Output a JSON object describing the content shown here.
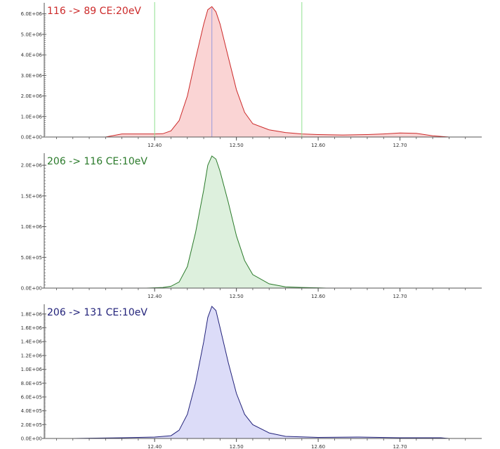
{
  "colors": {
    "axis": "#555555",
    "marker_line": "#90e090",
    "apex_line": "#9999dd"
  },
  "chart_data": [
    {
      "type": "area",
      "title": "116 -> 89 CE:20eV",
      "color": "#cc2a2a",
      "fill": "#fad4d4",
      "xlim": [
        12.265,
        12.8
      ],
      "ylim": [
        0,
        6400000
      ],
      "x_ticks": [
        12.4,
        12.5,
        12.6,
        12.7
      ],
      "x_tick_labels": [
        "12.40",
        "12.50",
        "12.60",
        "12.70"
      ],
      "y_ticks": [
        0,
        1000000,
        2000000,
        3000000,
        4000000,
        5000000,
        6000000
      ],
      "y_tick_labels": [
        "0.0E+00",
        "1.0E+06",
        "2.0E+06",
        "3.0E+06",
        "4.0E+06",
        "5.0E+06",
        "6.0E+06"
      ],
      "vertical_markers": [
        12.4,
        12.58
      ],
      "apex_marker": 12.47,
      "x": [
        12.3,
        12.34,
        12.36,
        12.38,
        12.4,
        12.41,
        12.42,
        12.43,
        12.44,
        12.45,
        12.46,
        12.465,
        12.47,
        12.475,
        12.48,
        12.49,
        12.5,
        12.51,
        12.52,
        12.54,
        12.56,
        12.58,
        12.6,
        12.63,
        12.66,
        12.68,
        12.7,
        12.72,
        12.74,
        12.76
      ],
      "y": [
        0,
        0,
        150000,
        150000,
        150000,
        160000,
        300000,
        800000,
        2000000,
        3800000,
        5500000,
        6200000,
        6350000,
        6100000,
        5500000,
        3900000,
        2300000,
        1200000,
        650000,
        350000,
        220000,
        150000,
        120000,
        100000,
        120000,
        150000,
        200000,
        180000,
        60000,
        0
      ]
    },
    {
      "type": "area",
      "title": "206 -> 116 CE:10eV",
      "color": "#2a7a2a",
      "fill": "#ddf0dd",
      "xlim": [
        12.265,
        12.8
      ],
      "ylim": [
        0,
        2150000
      ],
      "x_ticks": [
        12.4,
        12.5,
        12.6,
        12.7
      ],
      "x_tick_labels": [
        "12.40",
        "12.50",
        "12.60",
        "12.70"
      ],
      "y_ticks": [
        0,
        500000,
        1000000,
        1500000,
        2000000
      ],
      "y_tick_labels": [
        "0.0E+00",
        "5.0E+05",
        "1.0E+06",
        "1.5E+06",
        "2.0E+06"
      ],
      "x": [
        12.39,
        12.41,
        12.42,
        12.43,
        12.44,
        12.45,
        12.46,
        12.465,
        12.47,
        12.475,
        12.48,
        12.49,
        12.5,
        12.51,
        12.52,
        12.54,
        12.56,
        12.58,
        12.6,
        12.61
      ],
      "y": [
        0,
        10000,
        30000,
        100000,
        350000,
        900000,
        1600000,
        2000000,
        2150000,
        2100000,
        1900000,
        1400000,
        850000,
        450000,
        220000,
        70000,
        20000,
        10000,
        5000,
        0
      ]
    },
    {
      "type": "area",
      "title": "206 -> 131 CE:10eV",
      "color": "#22227a",
      "fill": "#dcdcf8",
      "xlim": [
        12.265,
        12.8
      ],
      "ylim": [
        0,
        1900000
      ],
      "x_ticks": [
        12.4,
        12.5,
        12.6,
        12.7
      ],
      "x_tick_labels": [
        "12.40",
        "12.50",
        "12.60",
        "12.70"
      ],
      "y_ticks": [
        0,
        200000,
        400000,
        600000,
        800000,
        1000000,
        1200000,
        1400000,
        1600000,
        1800000
      ],
      "y_tick_labels": [
        "0.0E+00",
        "2.0E+05",
        "4.0E+05",
        "6.0E+05",
        "8.0E+05",
        "1.0E+06",
        "1.2E+06",
        "1.4E+06",
        "1.6E+06",
        "1.8E+06"
      ],
      "x": [
        12.3,
        12.36,
        12.4,
        12.42,
        12.43,
        12.44,
        12.45,
        12.46,
        12.465,
        12.47,
        12.475,
        12.48,
        12.49,
        12.5,
        12.51,
        12.52,
        12.54,
        12.56,
        12.6,
        12.65,
        12.7,
        12.75,
        12.76
      ],
      "y": [
        0,
        10000,
        20000,
        40000,
        120000,
        350000,
        800000,
        1400000,
        1750000,
        1910000,
        1850000,
        1600000,
        1100000,
        650000,
        350000,
        200000,
        80000,
        30000,
        15000,
        20000,
        10000,
        10000,
        0
      ]
    }
  ]
}
